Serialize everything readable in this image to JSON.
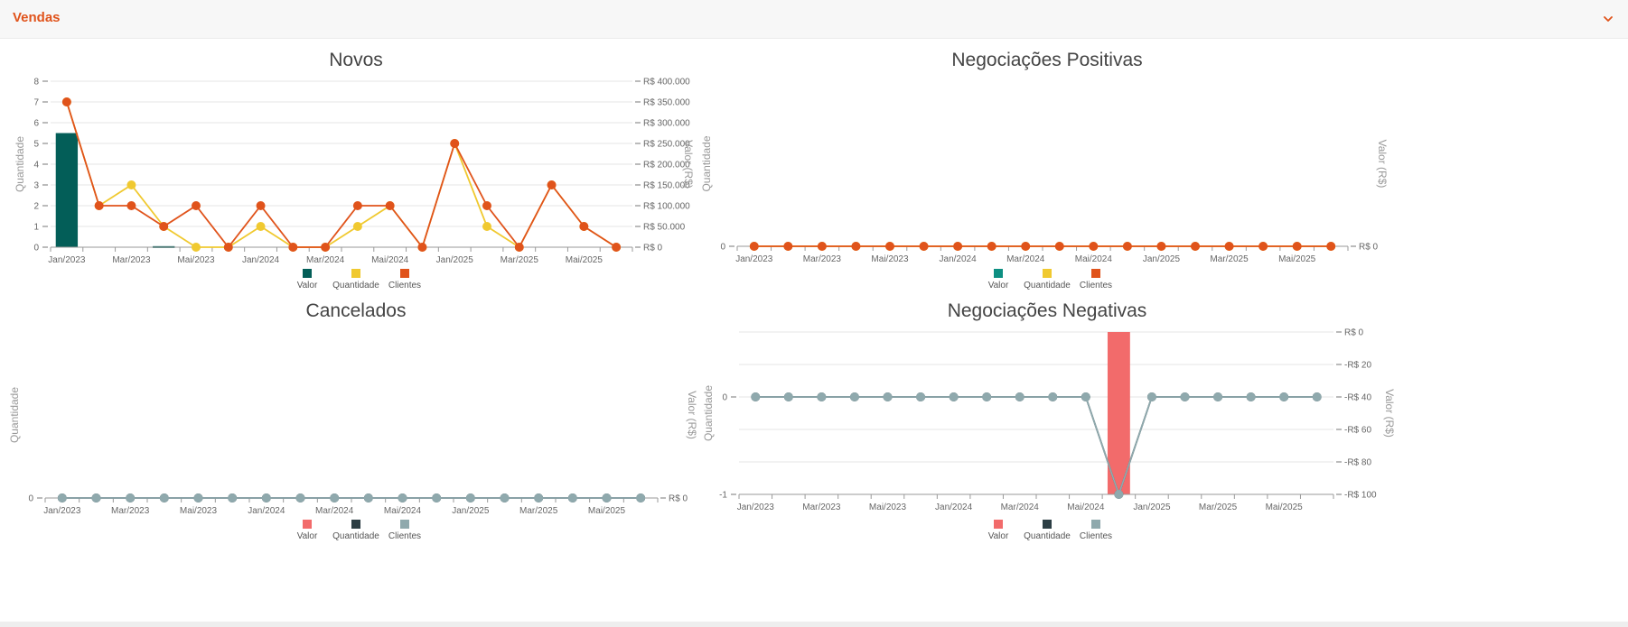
{
  "panel": {
    "title": "Vendas",
    "toggle_icon": "chevron-down-icon"
  },
  "chart_data": [
    {
      "id": "novos",
      "type": "bar+line",
      "title": "Novos",
      "ylabel_left": "Quantidade",
      "ylabel_right": "Valor (R$)",
      "ylim_left": [
        0,
        8
      ],
      "left_ticks": [
        "0",
        "1",
        "2",
        "3",
        "4",
        "5",
        "6",
        "7",
        "8"
      ],
      "left_tick_values": [
        0,
        1,
        2,
        3,
        4,
        5,
        6,
        7,
        8
      ],
      "right_ticks": [
        "R$ 0",
        "R$ 50.000",
        "R$ 100.000",
        "R$ 150.000",
        "R$ 200.000",
        "R$ 250.000",
        "R$ 300.000",
        "R$ 350.000",
        "R$ 400.000"
      ],
      "right_tick_values": [
        0,
        50000,
        100000,
        150000,
        200000,
        250000,
        300000,
        350000,
        400000
      ],
      "ylim_right": [
        0,
        400000
      ],
      "x_count": 18,
      "x_labels": [
        {
          "i": 0,
          "label": "Jan/2023"
        },
        {
          "i": 2,
          "label": "Mar/2023"
        },
        {
          "i": 4,
          "label": "Mai/2023"
        },
        {
          "i": 6,
          "label": "Jan/2024"
        },
        {
          "i": 8,
          "label": "Mar/2024"
        },
        {
          "i": 10,
          "label": "Mai/2024"
        },
        {
          "i": 12,
          "label": "Jan/2025"
        },
        {
          "i": 14,
          "label": "Mar/2025"
        },
        {
          "i": 16,
          "label": "Mai/2025"
        }
      ],
      "bars": {
        "name": "Valor",
        "color": "#035e58",
        "values": [
          275000,
          0,
          0,
          2500,
          0,
          0,
          0,
          0,
          0,
          0,
          0,
          0,
          0,
          0,
          0,
          0,
          0,
          0
        ]
      },
      "lines": [
        {
          "name": "Quantidade",
          "color": "#f0c930",
          "values": [
            7,
            2,
            3,
            1,
            0,
            0,
            1,
            0,
            0,
            1,
            2,
            0,
            5,
            1,
            0,
            3,
            1,
            0
          ]
        },
        {
          "name": "Clientes",
          "color": "#e0531b",
          "values": [
            7,
            2,
            2,
            1,
            2,
            0,
            2,
            0,
            0,
            2,
            2,
            0,
            5,
            2,
            0,
            3,
            1,
            0
          ]
        }
      ],
      "legend": [
        {
          "name": "Valor",
          "color": "#035e58"
        },
        {
          "name": "Quantidade",
          "color": "#f0c930"
        },
        {
          "name": "Clientes",
          "color": "#e0531b"
        }
      ]
    },
    {
      "id": "positivas",
      "type": "bar+line",
      "title": "Negociações Positivas",
      "ylabel_left": "Quantidade",
      "ylabel_right": "Valor (R$)",
      "ylim_left": [
        0,
        1
      ],
      "left_ticks": [
        "0"
      ],
      "left_tick_values": [
        0
      ],
      "right_ticks": [
        "R$ 0"
      ],
      "right_tick_values": [
        0
      ],
      "ylim_right": [
        0,
        1
      ],
      "x_count": 18,
      "x_labels": [
        {
          "i": 0,
          "label": "Jan/2023"
        },
        {
          "i": 2,
          "label": "Mar/2023"
        },
        {
          "i": 4,
          "label": "Mai/2023"
        },
        {
          "i": 6,
          "label": "Jan/2024"
        },
        {
          "i": 8,
          "label": "Mar/2024"
        },
        {
          "i": 10,
          "label": "Mai/2024"
        },
        {
          "i": 12,
          "label": "Jan/2025"
        },
        {
          "i": 14,
          "label": "Mar/2025"
        },
        {
          "i": 16,
          "label": "Mai/2025"
        }
      ],
      "bars": {
        "name": "Valor",
        "color": "#0d8f82",
        "values": [
          0,
          0,
          0,
          0,
          0,
          0,
          0,
          0,
          0,
          0,
          0,
          0,
          0,
          0,
          0,
          0,
          0,
          0
        ]
      },
      "lines": [
        {
          "name": "Quantidade",
          "color": "#f0c930",
          "values": [
            0,
            0,
            0,
            0,
            0,
            0,
            0,
            0,
            0,
            0,
            0,
            0,
            0,
            0,
            0,
            0,
            0,
            0
          ]
        },
        {
          "name": "Clientes",
          "color": "#e0531b",
          "values": [
            0,
            0,
            0,
            0,
            0,
            0,
            0,
            0,
            0,
            0,
            0,
            0,
            0,
            0,
            0,
            0,
            0,
            0
          ]
        }
      ],
      "legend": [
        {
          "name": "Valor",
          "color": "#0d8f82"
        },
        {
          "name": "Quantidade",
          "color": "#f0c930"
        },
        {
          "name": "Clientes",
          "color": "#e0531b"
        }
      ]
    },
    {
      "id": "cancelados",
      "type": "bar+line",
      "title": "Cancelados",
      "ylabel_left": "Quantidade",
      "ylabel_right": "Valor (R$)",
      "ylim_left": [
        0,
        1
      ],
      "left_ticks": [
        "0"
      ],
      "left_tick_values": [
        0
      ],
      "right_ticks": [
        "R$ 0"
      ],
      "right_tick_values": [
        0
      ],
      "ylim_right": [
        0,
        1
      ],
      "x_count": 18,
      "x_labels": [
        {
          "i": 0,
          "label": "Jan/2023"
        },
        {
          "i": 2,
          "label": "Mar/2023"
        },
        {
          "i": 4,
          "label": "Mai/2023"
        },
        {
          "i": 6,
          "label": "Jan/2024"
        },
        {
          "i": 8,
          "label": "Mar/2024"
        },
        {
          "i": 10,
          "label": "Mai/2024"
        },
        {
          "i": 12,
          "label": "Jan/2025"
        },
        {
          "i": 14,
          "label": "Mar/2025"
        },
        {
          "i": 16,
          "label": "Mai/2025"
        }
      ],
      "bars": {
        "name": "Valor",
        "color": "#f26b6b",
        "values": [
          0,
          0,
          0,
          0,
          0,
          0,
          0,
          0,
          0,
          0,
          0,
          0,
          0,
          0,
          0,
          0,
          0,
          0
        ]
      },
      "lines": [
        {
          "name": "Quantidade",
          "color": "#2c3e44",
          "values": [
            0,
            0,
            0,
            0,
            0,
            0,
            0,
            0,
            0,
            0,
            0,
            0,
            0,
            0,
            0,
            0,
            0,
            0
          ]
        },
        {
          "name": "Clientes",
          "color": "#8fa9ad",
          "values": [
            0,
            0,
            0,
            0,
            0,
            0,
            0,
            0,
            0,
            0,
            0,
            0,
            0,
            0,
            0,
            0,
            0,
            0
          ]
        }
      ],
      "legend": [
        {
          "name": "Valor",
          "color": "#f26b6b"
        },
        {
          "name": "Quantidade",
          "color": "#2c3e44"
        },
        {
          "name": "Clientes",
          "color": "#8fa9ad"
        }
      ]
    },
    {
      "id": "negativas",
      "type": "bar+line",
      "title": "Negociações Negativas",
      "ylabel_left": "Quantidade",
      "ylabel_right": "Valor (R$)",
      "ylim_left": [
        -1,
        0.2
      ],
      "left_ticks": [
        "-1",
        "0"
      ],
      "left_tick_values": [
        -1,
        0
      ],
      "right_ticks": [
        "-R$ 100",
        "-R$ 80",
        "-R$ 60",
        "-R$ 40",
        "-R$ 20",
        "R$ 0"
      ],
      "right_tick_values": [
        -100,
        -80,
        -60,
        -40,
        -20,
        0
      ],
      "ylim_right": [
        -100,
        0
      ],
      "x_count": 18,
      "x_labels": [
        {
          "i": 0,
          "label": "Jan/2023"
        },
        {
          "i": 2,
          "label": "Mar/2023"
        },
        {
          "i": 4,
          "label": "Mai/2023"
        },
        {
          "i": 6,
          "label": "Jan/2024"
        },
        {
          "i": 8,
          "label": "Mar/2024"
        },
        {
          "i": 10,
          "label": "Mai/2024"
        },
        {
          "i": 12,
          "label": "Jan/2025"
        },
        {
          "i": 14,
          "label": "Mar/2025"
        },
        {
          "i": 16,
          "label": "Mai/2025"
        }
      ],
      "bars": {
        "name": "Valor",
        "color": "#f26b6b",
        "values": [
          0,
          0,
          0,
          0,
          0,
          0,
          0,
          0,
          0,
          0,
          0,
          -100,
          0,
          0,
          0,
          0,
          0,
          0
        ]
      },
      "lines": [
        {
          "name": "Quantidade",
          "color": "#2c3e44",
          "values": [
            0,
            0,
            0,
            0,
            0,
            0,
            0,
            0,
            0,
            0,
            0,
            -1,
            0,
            0,
            0,
            0,
            0,
            0
          ]
        },
        {
          "name": "Clientes",
          "color": "#8fa9ad",
          "values": [
            0,
            0,
            0,
            0,
            0,
            0,
            0,
            0,
            0,
            0,
            0,
            -1,
            0,
            0,
            0,
            0,
            0,
            0
          ]
        }
      ],
      "legend": [
        {
          "name": "Valor",
          "color": "#f26b6b"
        },
        {
          "name": "Quantidade",
          "color": "#2c3e44"
        },
        {
          "name": "Clientes",
          "color": "#8fa9ad"
        }
      ]
    }
  ]
}
